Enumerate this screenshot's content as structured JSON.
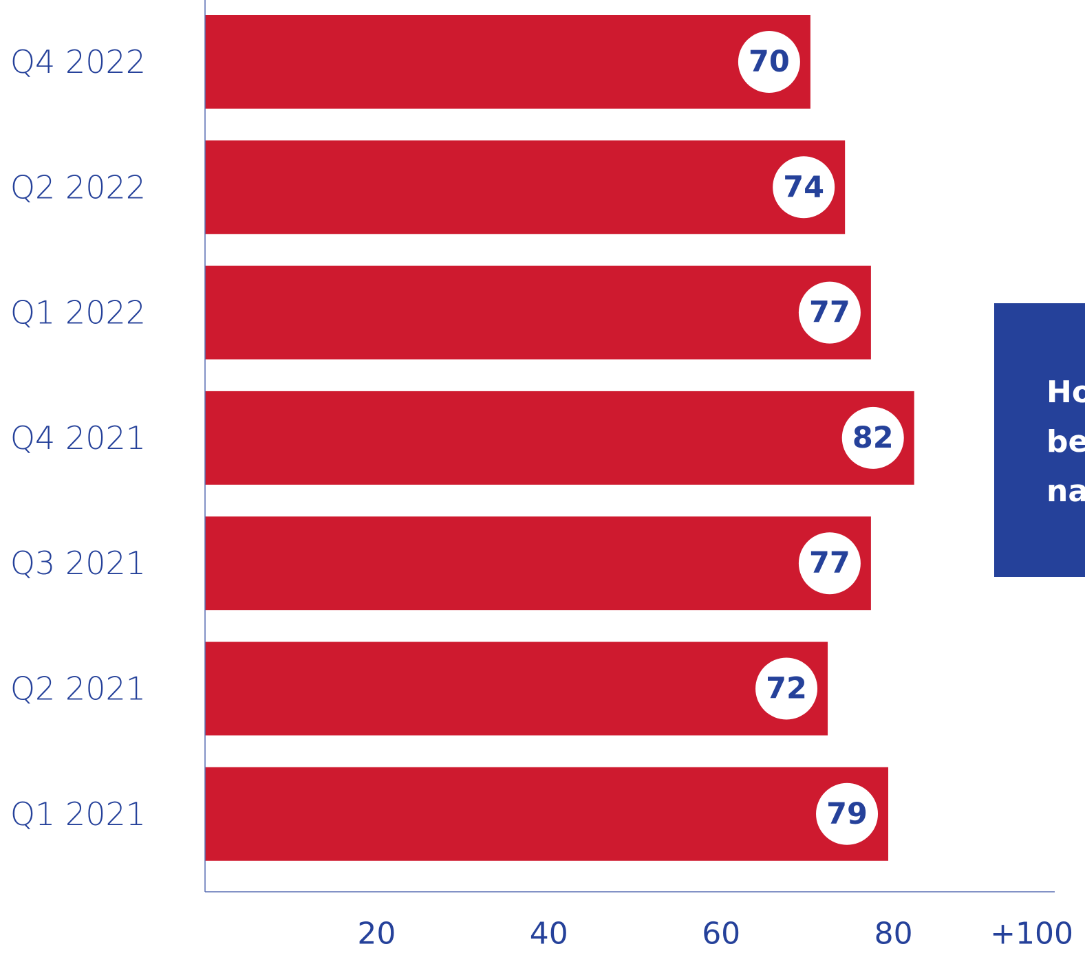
{
  "colors": {
    "bar": "#ce1a2f",
    "text": "#25419a",
    "axis": "#5a6fb3",
    "callout_bg": "#25419a",
    "value_circle": "#ffffff"
  },
  "chart_data": {
    "type": "bar",
    "orientation": "horizontal",
    "categories": [
      "Q4 2022",
      "Q2 2022",
      "Q1 2022",
      "Q4 2021",
      "Q3 2021",
      "Q2 2021",
      "Q1 2021"
    ],
    "values": [
      70,
      74,
      77,
      82,
      77,
      72,
      79
    ],
    "value_labels": [
      "70",
      "74",
      "77",
      "82",
      "77",
      "72",
      "79"
    ],
    "x_ticks": [
      20,
      40,
      60,
      80,
      100
    ],
    "x_tick_labels": [
      "20",
      "40",
      "60",
      "80",
      "+100"
    ],
    "title": "",
    "xlabel": "",
    "ylabel": "",
    "grid": false,
    "legend": "none"
  },
  "callout": {
    "lines": [
      "Ho",
      "be",
      "na"
    ]
  }
}
